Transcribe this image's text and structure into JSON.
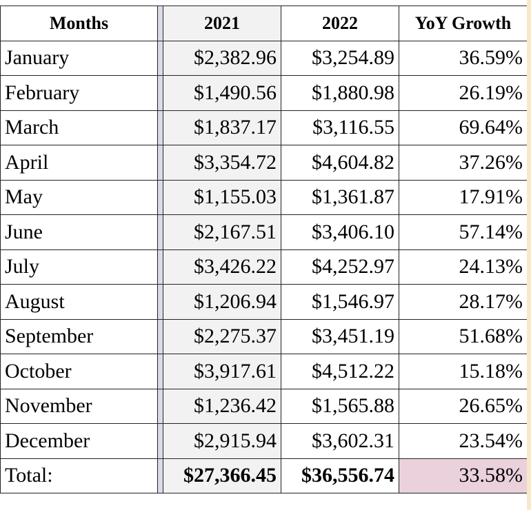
{
  "header": {
    "months": "Months",
    "y2021": "2021",
    "y2022": "2022",
    "yoy": "YoY Growth"
  },
  "rows": [
    {
      "month": "January",
      "y2021": "$2,382.96",
      "y2022": "$3,254.89",
      "yoy": "36.59%"
    },
    {
      "month": "February",
      "y2021": "$1,490.56",
      "y2022": "$1,880.98",
      "yoy": "26.19%"
    },
    {
      "month": "March",
      "y2021": "$1,837.17",
      "y2022": "$3,116.55",
      "yoy": "69.64%"
    },
    {
      "month": "April",
      "y2021": "$3,354.72",
      "y2022": "$4,604.82",
      "yoy": "37.26%"
    },
    {
      "month": "May",
      "y2021": "$1,155.03",
      "y2022": "$1,361.87",
      "yoy": "17.91%"
    },
    {
      "month": "June",
      "y2021": "$2,167.51",
      "y2022": "$3,406.10",
      "yoy": "57.14%"
    },
    {
      "month": "July",
      "y2021": "$3,426.22",
      "y2022": "$4,252.97",
      "yoy": "24.13%"
    },
    {
      "month": "August",
      "y2021": "$1,206.94",
      "y2022": "$1,546.97",
      "yoy": "28.17%"
    },
    {
      "month": "September",
      "y2021": "$2,275.37",
      "y2022": "$3,451.19",
      "yoy": "51.68%"
    },
    {
      "month": "October",
      "y2021": "$3,917.61",
      "y2022": "$4,512.22",
      "yoy": "15.18%"
    },
    {
      "month": "November",
      "y2021": "$1,236.42",
      "y2022": "$1,565.88",
      "yoy": "26.65%"
    },
    {
      "month": "December",
      "y2021": "$2,915.94",
      "y2022": "$3,602.31",
      "yoy": "23.54%"
    }
  ],
  "total": {
    "label": "Total:",
    "y2021": "$27,366.45",
    "y2022": "$36,556.74",
    "yoy": "33.58%"
  },
  "colors": {
    "shaded_column": "#f2f2f2",
    "total_growth_highlight": "#ead1dc",
    "frozen_divider": "#d9dce8"
  }
}
